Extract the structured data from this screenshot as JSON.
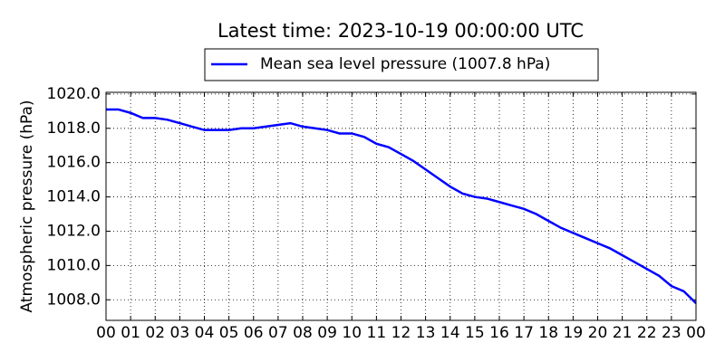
{
  "chart_data": {
    "type": "line",
    "title": "Latest time: 2023-10-19 00:00:00 UTC",
    "y_label": "Atmospheric pressure (hPa)",
    "x": [
      0,
      0.5,
      1,
      1.5,
      2,
      2.5,
      3,
      3.5,
      4,
      4.5,
      5,
      5.5,
      6,
      6.5,
      7,
      7.5,
      8,
      8.5,
      9,
      9.5,
      10,
      10.5,
      11,
      11.5,
      12,
      12.5,
      13,
      13.5,
      14,
      14.5,
      15,
      15.5,
      16,
      16.5,
      17,
      17.5,
      18,
      18.5,
      19,
      19.5,
      20,
      20.5,
      21,
      21.5,
      22,
      22.5,
      23,
      23.5,
      24
    ],
    "series": [
      {
        "name": "Mean sea level pressure (1007.8 hPa)",
        "color": "#0000ff",
        "values": [
          1019.1,
          1019.1,
          1018.9,
          1018.6,
          1018.6,
          1018.5,
          1018.3,
          1018.1,
          1017.9,
          1017.9,
          1017.9,
          1018.0,
          1018.0,
          1018.1,
          1018.2,
          1018.3,
          1018.1,
          1018.0,
          1017.9,
          1017.7,
          1017.7,
          1017.5,
          1017.1,
          1016.9,
          1016.5,
          1016.1,
          1015.6,
          1015.1,
          1014.6,
          1014.2,
          1014.0,
          1013.9,
          1013.7,
          1013.5,
          1013.3,
          1013.0,
          1012.6,
          1012.2,
          1011.9,
          1011.6,
          1011.3,
          1011.0,
          1010.6,
          1010.2,
          1009.8,
          1009.4,
          1008.8,
          1008.5,
          1007.8
        ]
      }
    ],
    "xlim": [
      0,
      24
    ],
    "xticks": [
      {
        "value": 0,
        "label": "00"
      },
      {
        "value": 1,
        "label": "01"
      },
      {
        "value": 2,
        "label": "02"
      },
      {
        "value": 3,
        "label": "03"
      },
      {
        "value": 4,
        "label": "04"
      },
      {
        "value": 5,
        "label": "05"
      },
      {
        "value": 6,
        "label": "06"
      },
      {
        "value": 7,
        "label": "07"
      },
      {
        "value": 8,
        "label": "08"
      },
      {
        "value": 9,
        "label": "09"
      },
      {
        "value": 10,
        "label": "10"
      },
      {
        "value": 11,
        "label": "11"
      },
      {
        "value": 12,
        "label": "12"
      },
      {
        "value": 13,
        "label": "13"
      },
      {
        "value": 14,
        "label": "14"
      },
      {
        "value": 15,
        "label": "15"
      },
      {
        "value": 16,
        "label": "16"
      },
      {
        "value": 17,
        "label": "17"
      },
      {
        "value": 18,
        "label": "18"
      },
      {
        "value": 19,
        "label": "19"
      },
      {
        "value": 20,
        "label": "20"
      },
      {
        "value": 21,
        "label": "21"
      },
      {
        "value": 22,
        "label": "22"
      },
      {
        "value": 23,
        "label": "23"
      },
      {
        "value": 24,
        "label": "00"
      }
    ],
    "ylim": [
      1006.8,
      1020.1
    ],
    "yticks": [
      {
        "value": 1008,
        "label": "1008.0"
      },
      {
        "value": 1010,
        "label": "1010.0"
      },
      {
        "value": 1012,
        "label": "1012.0"
      },
      {
        "value": 1014,
        "label": "1014.0"
      },
      {
        "value": 1016,
        "label": "1016.0"
      },
      {
        "value": 1018,
        "label": "1018.0"
      },
      {
        "value": 1020,
        "label": "1020.0"
      }
    ],
    "grid": true,
    "legend": "top"
  }
}
